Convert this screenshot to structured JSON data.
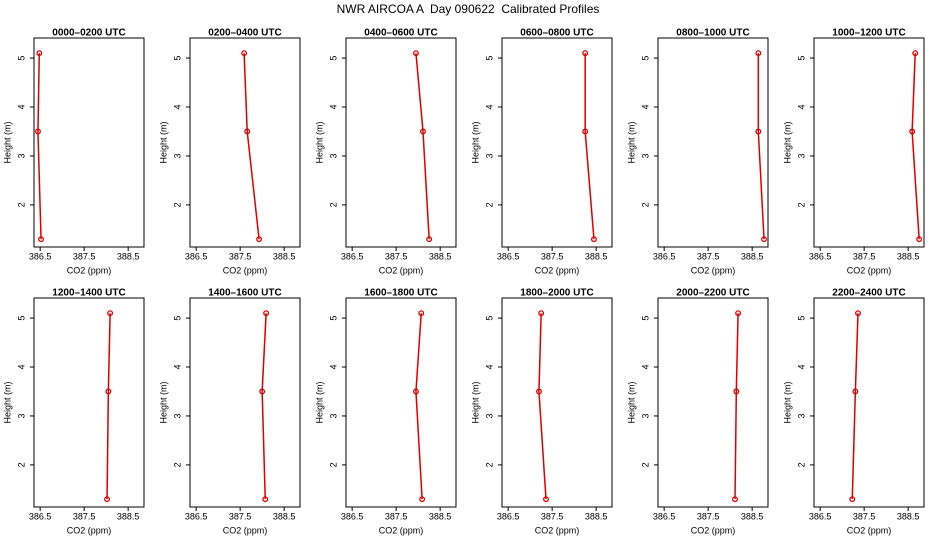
{
  "title": "NWR AIRCOA A  Day 090622  Calibrated Profiles",
  "chart_data": [
    {
      "type": "line",
      "title": "0000–0200 UTC",
      "xlabel": "CO2 (ppm)",
      "ylabel": "Height (m)",
      "color": "#dd0000",
      "x": [
        386.48,
        386.45,
        386.52
      ],
      "values": [
        5.1,
        3.5,
        1.3
      ],
      "xlim": [
        386.36,
        388.86
      ],
      "ylim": [
        1.14,
        5.41
      ],
      "xticks": [
        386.5,
        387.5,
        388.5
      ],
      "yticks": [
        2,
        3,
        4,
        5
      ]
    },
    {
      "type": "line",
      "title": "0200–0400 UTC",
      "xlabel": "CO2 (ppm)",
      "ylabel": "Height (m)",
      "color": "#dd0000",
      "x": [
        387.59,
        387.66,
        387.93
      ],
      "values": [
        5.1,
        3.5,
        1.3
      ],
      "xlim": [
        386.36,
        388.86
      ],
      "ylim": [
        1.14,
        5.41
      ],
      "xticks": [
        386.5,
        387.5,
        388.5
      ],
      "yticks": [
        2,
        3,
        4,
        5
      ]
    },
    {
      "type": "line",
      "title": "0400–0600 UTC",
      "xlabel": "CO2 (ppm)",
      "ylabel": "Height (m)",
      "color": "#dd0000",
      "x": [
        387.95,
        388.11,
        388.25
      ],
      "values": [
        5.1,
        3.5,
        1.3
      ],
      "xlim": [
        386.36,
        388.86
      ],
      "ylim": [
        1.14,
        5.41
      ],
      "xticks": [
        386.5,
        387.5,
        388.5
      ],
      "yticks": [
        2,
        3,
        4,
        5
      ]
    },
    {
      "type": "line",
      "title": "0600–0800 UTC",
      "xlabel": "CO2 (ppm)",
      "ylabel": "Height (m)",
      "color": "#dd0000",
      "x": [
        388.25,
        388.25,
        388.45
      ],
      "values": [
        5.1,
        3.5,
        1.3
      ],
      "xlim": [
        386.36,
        388.86
      ],
      "ylim": [
        1.14,
        5.41
      ],
      "xticks": [
        386.5,
        387.5,
        388.5
      ],
      "yticks": [
        2,
        3,
        4,
        5
      ]
    },
    {
      "type": "line",
      "title": "0800–1000 UTC",
      "xlabel": "CO2 (ppm)",
      "ylabel": "Height (m)",
      "color": "#dd0000",
      "x": [
        388.64,
        388.64,
        388.77
      ],
      "values": [
        5.1,
        3.5,
        1.3
      ],
      "xlim": [
        386.36,
        388.86
      ],
      "ylim": [
        1.14,
        5.41
      ],
      "xticks": [
        386.5,
        387.5,
        388.5
      ],
      "yticks": [
        2,
        3,
        4,
        5
      ]
    },
    {
      "type": "line",
      "title": "1000–1200 UTC",
      "xlabel": "CO2 (ppm)",
      "ylabel": "Height (m)",
      "color": "#dd0000",
      "x": [
        388.66,
        388.59,
        388.75
      ],
      "values": [
        5.1,
        3.5,
        1.3
      ],
      "xlim": [
        386.36,
        388.86
      ],
      "ylim": [
        1.14,
        5.41
      ],
      "xticks": [
        386.5,
        387.5,
        388.5
      ],
      "yticks": [
        2,
        3,
        4,
        5
      ]
    },
    {
      "type": "line",
      "title": "1200–1400 UTC",
      "xlabel": "CO2 (ppm)",
      "ylabel": "Height (m)",
      "color": "#dd0000",
      "x": [
        388.09,
        388.05,
        388.02
      ],
      "values": [
        5.1,
        3.5,
        1.3
      ],
      "xlim": [
        386.36,
        388.86
      ],
      "ylim": [
        1.14,
        5.41
      ],
      "xticks": [
        386.5,
        387.5,
        388.5
      ],
      "yticks": [
        2,
        3,
        4,
        5
      ]
    },
    {
      "type": "line",
      "title": "1400–1600 UTC",
      "xlabel": "CO2 (ppm)",
      "ylabel": "Height (m)",
      "color": "#dd0000",
      "x": [
        388.09,
        388.0,
        388.07
      ],
      "values": [
        5.1,
        3.5,
        1.3
      ],
      "xlim": [
        386.36,
        388.86
      ],
      "ylim": [
        1.14,
        5.41
      ],
      "xticks": [
        386.5,
        387.5,
        388.5
      ],
      "yticks": [
        2,
        3,
        4,
        5
      ]
    },
    {
      "type": "line",
      "title": "1600–1800 UTC",
      "xlabel": "CO2 (ppm)",
      "ylabel": "Height (m)",
      "color": "#dd0000",
      "x": [
        388.07,
        387.95,
        388.09
      ],
      "values": [
        5.1,
        3.5,
        1.3
      ],
      "xlim": [
        386.36,
        388.86
      ],
      "ylim": [
        1.14,
        5.41
      ],
      "xticks": [
        386.5,
        387.5,
        388.5
      ],
      "yticks": [
        2,
        3,
        4,
        5
      ]
    },
    {
      "type": "line",
      "title": "1800–2000 UTC",
      "xlabel": "CO2 (ppm)",
      "ylabel": "Height (m)",
      "color": "#dd0000",
      "x": [
        387.25,
        387.2,
        387.36
      ],
      "values": [
        5.1,
        3.5,
        1.3
      ],
      "xlim": [
        386.36,
        388.86
      ],
      "ylim": [
        1.14,
        5.41
      ],
      "xticks": [
        386.5,
        387.5,
        388.5
      ],
      "yticks": [
        2,
        3,
        4,
        5
      ]
    },
    {
      "type": "line",
      "title": "2000–2200 UTC",
      "xlabel": "CO2 (ppm)",
      "ylabel": "Height (m)",
      "color": "#dd0000",
      "x": [
        388.18,
        388.14,
        388.11
      ],
      "values": [
        5.1,
        3.5,
        1.3
      ],
      "xlim": [
        386.36,
        388.86
      ],
      "ylim": [
        1.14,
        5.41
      ],
      "xticks": [
        386.5,
        387.5,
        388.5
      ],
      "yticks": [
        2,
        3,
        4,
        5
      ]
    },
    {
      "type": "line",
      "title": "2200–2400 UTC",
      "xlabel": "CO2 (ppm)",
      "ylabel": "Height (m)",
      "color": "#dd0000",
      "x": [
        387.36,
        387.3,
        387.23
      ],
      "values": [
        5.1,
        3.5,
        1.3
      ],
      "xlim": [
        386.36,
        388.86
      ],
      "ylim": [
        1.14,
        5.41
      ],
      "xticks": [
        386.5,
        387.5,
        388.5
      ],
      "yticks": [
        2,
        3,
        4,
        5
      ]
    }
  ]
}
